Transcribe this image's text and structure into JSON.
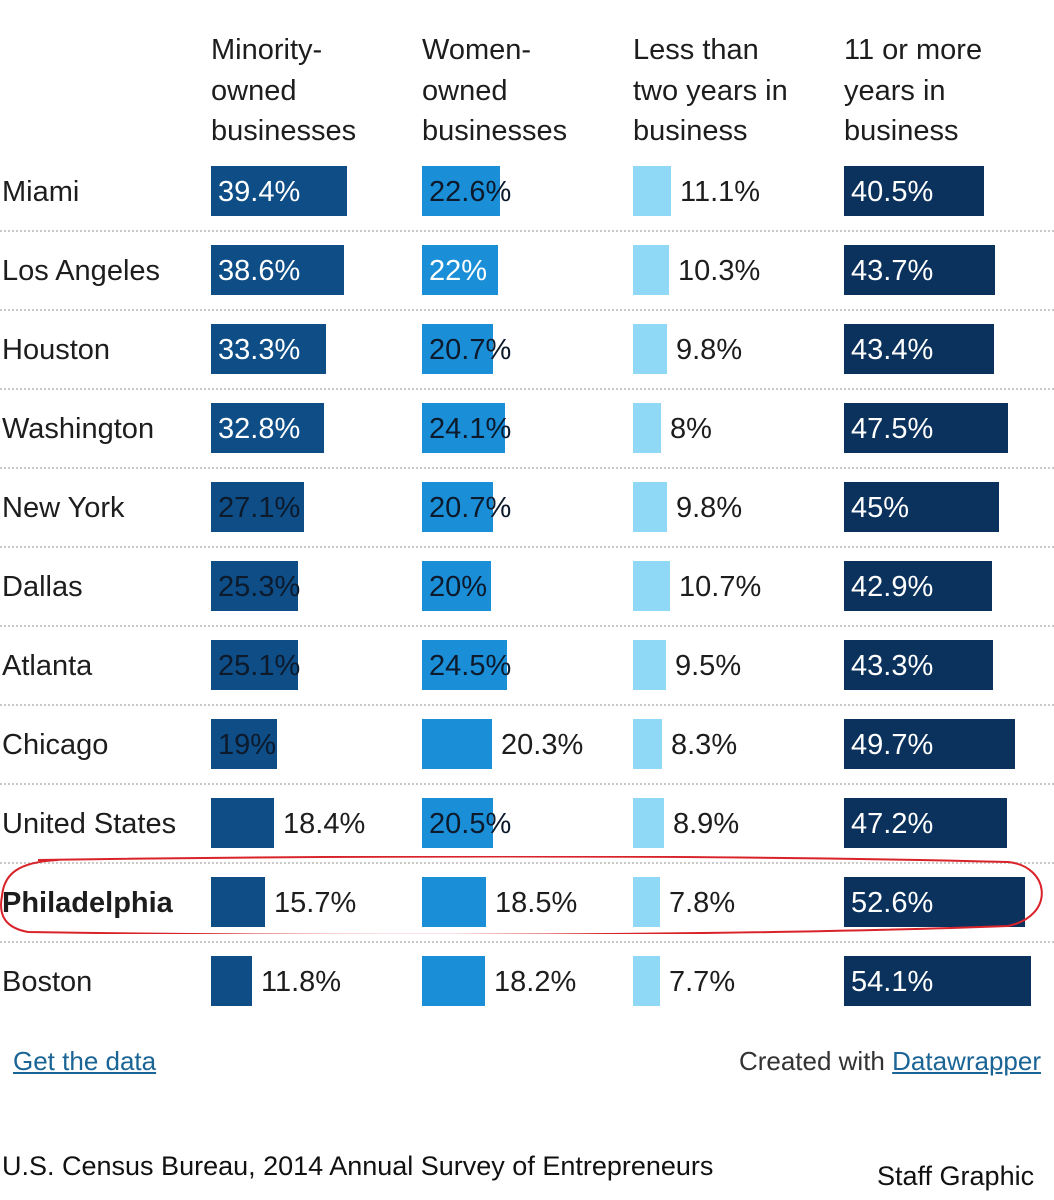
{
  "chart_data": {
    "type": "bar",
    "title": "",
    "columns": [
      {
        "key": "minority",
        "label_lines": [
          "Minority-",
          "owned",
          "businesses"
        ],
        "color": "#0e4d86"
      },
      {
        "key": "women",
        "label_lines": [
          "Women-",
          "owned",
          "businesses"
        ],
        "color": "#1a8fd8"
      },
      {
        "key": "lt2",
        "label_lines": [
          "Less than",
          "two years in",
          "business"
        ],
        "color": "#8fd9f6"
      },
      {
        "key": "gt11",
        "label_lines": [
          "11 or more",
          "years in",
          "business"
        ],
        "color": "#0b325c"
      }
    ],
    "categories": [
      "Miami",
      "Los Angeles",
      "Houston",
      "Washington",
      "New York",
      "Dallas",
      "Atlanta",
      "Chicago",
      "United States",
      "Philadelphia",
      "Boston"
    ],
    "highlight": "Philadelphia",
    "series": [
      {
        "key": "minority",
        "values": [
          39.4,
          38.6,
          33.3,
          32.8,
          27.1,
          25.3,
          25.1,
          19,
          18.4,
          15.7,
          11.8
        ],
        "labels": [
          "39.4%",
          "38.6%",
          "33.3%",
          "32.8%",
          "27.1%",
          "25.3%",
          "25.1%",
          "19%",
          "18.4%",
          "15.7%",
          "11.8%"
        ]
      },
      {
        "key": "women",
        "values": [
          22.6,
          22,
          20.7,
          24.1,
          20.7,
          20,
          24.5,
          20.3,
          20.5,
          18.5,
          18.2
        ],
        "labels": [
          "22.6%",
          "22%",
          "20.7%",
          "24.1%",
          "20.7%",
          "20%",
          "24.5%",
          "20.3%",
          "20.5%",
          "18.5%",
          "18.2%"
        ]
      },
      {
        "key": "lt2",
        "values": [
          11.1,
          10.3,
          9.8,
          8,
          9.8,
          10.7,
          9.5,
          8.3,
          8.9,
          7.8,
          7.7
        ],
        "labels": [
          "11.1%",
          "10.3%",
          "9.8%",
          "8%",
          "9.8%",
          "10.7%",
          "9.5%",
          "8.3%",
          "8.9%",
          "7.8%",
          "7.7%"
        ]
      },
      {
        "key": "gt11",
        "values": [
          40.5,
          43.7,
          43.4,
          47.5,
          45,
          42.9,
          43.3,
          49.7,
          47.2,
          52.6,
          54.1
        ],
        "labels": [
          "40.5%",
          "43.7%",
          "43.4%",
          "47.5%",
          "45%",
          "42.9%",
          "43.3%",
          "49.7%",
          "47.2%",
          "52.6%",
          "54.1%"
        ]
      }
    ]
  },
  "footer": {
    "get_data": "Get the data",
    "created_with": "Created with",
    "datawrapper": "Datawrapper",
    "source": "U.S. Census Bureau, 2014 Annual Survey of Entrepreneurs",
    "credit": "Staff Graphic"
  },
  "annotation_color": "#d8232a"
}
